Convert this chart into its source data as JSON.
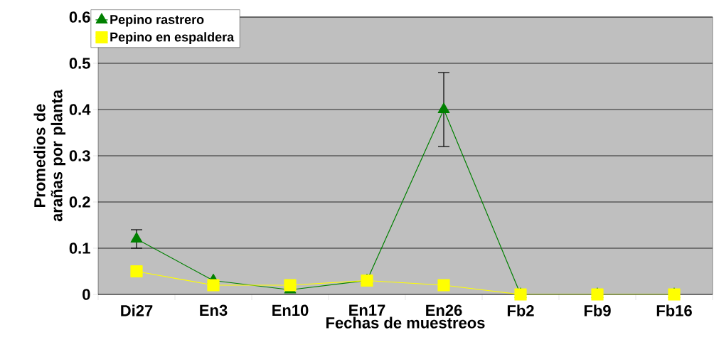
{
  "chart_data": {
    "type": "line",
    "xlabel": "Fechas de muestreos",
    "ylabel": "Promedios de arañas por planta",
    "categories": [
      "Di27",
      "En3",
      "En10",
      "En17",
      "En26",
      "Fb2",
      "Fb9",
      "Fb16"
    ],
    "series": [
      {
        "name": "Pepino rastrero",
        "color": "#008000",
        "marker": "triangle",
        "values": [
          0.12,
          0.03,
          0.01,
          0.03,
          0.4,
          0,
          0,
          0
        ],
        "errors": [
          0.02,
          null,
          null,
          null,
          0.08,
          null,
          null,
          null
        ]
      },
      {
        "name": "Pepino en espaldera",
        "color": "#ffff00",
        "marker": "square",
        "values": [
          0.05,
          0.02,
          0.02,
          0.03,
          0.02,
          0,
          0,
          0
        ]
      }
    ],
    "ylim": [
      0,
      0.6
    ],
    "yticks": [
      0,
      0.1,
      0.2,
      0.3,
      0.4,
      0.5,
      0.6
    ],
    "grid": "y",
    "legend": "top left"
  }
}
